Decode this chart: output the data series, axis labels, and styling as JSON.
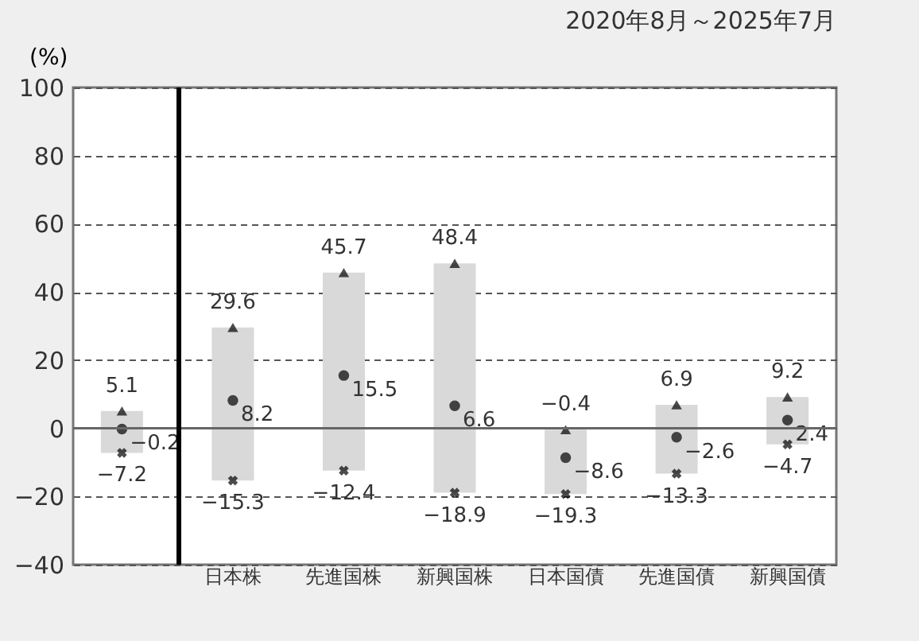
{
  "chart_data": {
    "type": "bar",
    "title": "2020年8月～2025年7月",
    "ylabel": "(%)",
    "categories": [
      null,
      "日本株",
      "先進国株",
      "新興国株",
      "日本国債",
      "先進国債",
      "新興国債"
    ],
    "ylim": [
      -40,
      100
    ],
    "yticks": [
      -40,
      -20,
      0,
      20,
      40,
      60,
      80,
      100
    ],
    "grid": "y",
    "line_style": "dashed",
    "legend": false,
    "ref_lines": [
      {
        "axis": "y",
        "value": 0,
        "line_style": "solid",
        "color": "#666666"
      }
    ],
    "series": [
      {
        "color": "#d9d9d9",
        "base": [
          -7.2,
          -15.3,
          -12.4,
          -18.9,
          -19.3,
          -13.3,
          -4.7
        ],
        "values": [
          12.3,
          44.9,
          58.1,
          67.3,
          18.9,
          20.2,
          13.9
        ]
      },
      {
        "type": "scatter",
        "marker": "triangle",
        "color": "#000000",
        "values": [
          5.1,
          29.6,
          45.7,
          48.4,
          -0.4,
          6.9,
          9.2
        ],
        "value_labels": [
          "5.1",
          "29.6",
          "45.7",
          "48.4",
          "−0.4",
          "6.9",
          "9.2"
        ]
      },
      {
        "type": "scatter",
        "marker": "circle",
        "color": "#000000",
        "values": [
          -0.2,
          8.2,
          15.5,
          6.6,
          -8.6,
          -2.6,
          2.4
        ],
        "value_labels": [
          "−0.2",
          "8.2",
          "15.5",
          "6.6",
          "−8.6",
          "−2.6",
          "2.4"
        ]
      },
      {
        "type": "scatter",
        "marker": "cross",
        "color": "#000000",
        "values": [
          -7.2,
          -15.3,
          -12.4,
          -18.9,
          -19.3,
          -13.3,
          -4.7
        ],
        "value_labels": [
          "−7.2",
          "−15.3",
          "−12.4",
          "−18.9",
          "−19.3",
          "−13.3",
          "−4.7"
        ]
      }
    ]
  }
}
